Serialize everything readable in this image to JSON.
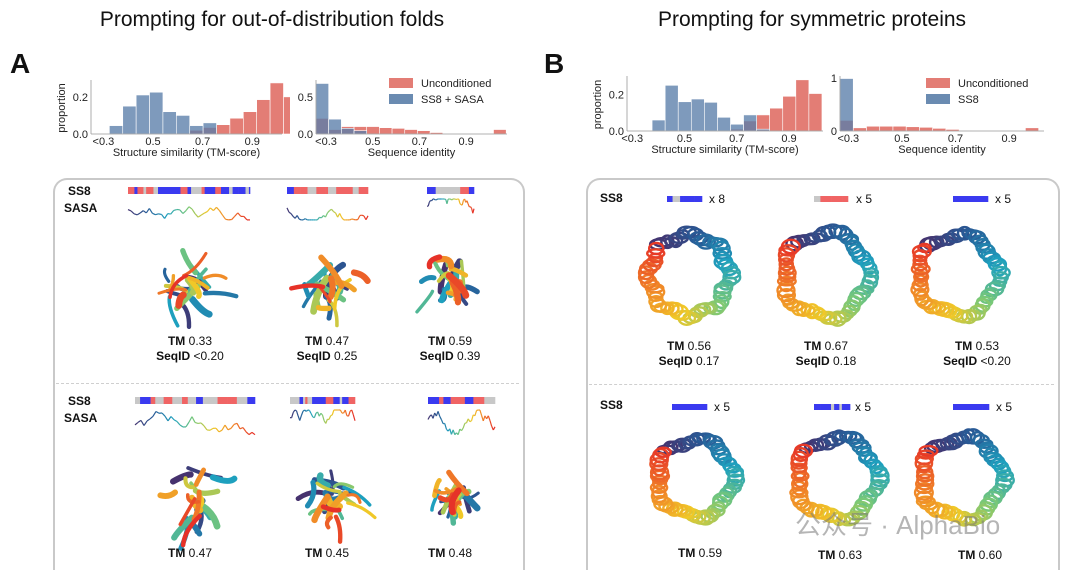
{
  "panel_a": {
    "letter": "A",
    "title": "Prompting for out-of-distribution folds",
    "row_labels": {
      "ss8": "SS8",
      "sasa": "SASA"
    },
    "row1": [
      {
        "tm_label": "TM",
        "tm": "0.33",
        "seqid_label": "SeqID",
        "seqid": "<0.20"
      },
      {
        "tm_label": "TM",
        "tm": "0.47",
        "seqid_label": "SeqID",
        "seqid": "0.25"
      },
      {
        "tm_label": "TM",
        "tm": "0.59",
        "seqid_label": "SeqID",
        "seqid": "0.39"
      }
    ],
    "row2": [
      {
        "tm_label": "TM",
        "tm": "0.47"
      },
      {
        "tm_label": "TM",
        "tm": "0.45"
      },
      {
        "tm_label": "TM",
        "tm": "0.48"
      }
    ]
  },
  "panel_b": {
    "letter": "B",
    "title": "Prompting for symmetric proteins",
    "row_labels": {
      "ss8": "SS8"
    },
    "row1": [
      {
        "repeat": "x 8",
        "tm_label": "TM",
        "tm": "0.56",
        "seqid_label": "SeqID",
        "seqid": "0.17"
      },
      {
        "repeat": "x 5",
        "tm_label": "TM",
        "tm": "0.67",
        "seqid_label": "SeqID",
        "seqid": "0.18"
      },
      {
        "repeat": "x 5",
        "tm_label": "TM",
        "tm": "0.53",
        "seqid_label": "SeqID",
        "seqid": "<0.20"
      }
    ],
    "row2": [
      {
        "repeat": "x 5",
        "tm_label": "TM",
        "tm": "0.59"
      },
      {
        "repeat": "x 5",
        "tm_label": "TM",
        "tm": "0.63"
      },
      {
        "repeat": "x 5",
        "tm_label": "TM",
        "tm": "0.60"
      }
    ]
  },
  "colors": {
    "unconditioned": "#e06f66",
    "conditioned": "#5a7ea9",
    "helix": "#3a3af0",
    "strand": "#f06464",
    "coil": "#c8c8c8"
  },
  "watermark": "公众号 · AlphaBio",
  "chart_data": [
    {
      "type": "bar",
      "panel": "A",
      "xlabel": "Structure similarity (TM-score)",
      "ylabel": "proportion",
      "xticks": [
        "<0.3",
        "0.5",
        "0.7",
        "0.9"
      ],
      "yticks": [
        "0.0",
        "0.2"
      ],
      "xlim": [
        0.25,
        1.02
      ],
      "ylim": [
        0,
        0.28
      ],
      "bin_start": 0.324,
      "bin_width": 0.054,
      "series": [
        {
          "name": "Unconditioned",
          "values": [
            0,
            0,
            0,
            0,
            0,
            0.005,
            0.02,
            0.035,
            0.05,
            0.085,
            0.12,
            0.185,
            0.275,
            0.2
          ]
        },
        {
          "name": "SS8 + SASA",
          "values": [
            0.045,
            0.15,
            0.21,
            0.225,
            0.12,
            0.1,
            0.045,
            0.06,
            0,
            0,
            0,
            0,
            0,
            0
          ]
        }
      ]
    },
    {
      "type": "bar",
      "panel": "A",
      "xlabel": "Sequence identity",
      "ylabel": "",
      "xticks": [
        "<0.3",
        "0.5",
        "0.7",
        "0.9"
      ],
      "yticks": [
        "0.0",
        "0.5"
      ],
      "xlim": [
        0.257,
        1.075
      ],
      "ylim": [
        0,
        0.7
      ],
      "bin_start": 0.257,
      "bin_width": 0.0543,
      "legend": "top-right",
      "series": [
        {
          "name": "Unconditioned",
          "values": [
            0.21,
            0.06,
            0.1,
            0.1,
            0.1,
            0.085,
            0.076,
            0.06,
            0.045,
            0.02,
            0,
            0,
            0,
            0,
            0.06
          ]
        },
        {
          "name": "SS8 + SASA",
          "values": [
            0.68,
            0.2,
            0.076,
            0.045,
            0,
            0,
            0,
            0,
            0,
            0,
            0,
            0,
            0,
            0,
            0
          ]
        }
      ]
    },
    {
      "type": "bar",
      "panel": "B",
      "xlabel": "Structure similarity (TM-score)",
      "ylabel": "proportion",
      "xticks": [
        "<0.3",
        "0.5",
        "0.7",
        "0.9"
      ],
      "yticks": [
        "0.0",
        "0.2"
      ],
      "xlim": [
        0.28,
        1.03
      ],
      "ylim": [
        0,
        0.29
      ],
      "bin_start": 0.376,
      "bin_width": 0.05,
      "series": [
        {
          "name": "Unconditioned",
          "values": [
            0,
            0,
            0,
            0,
            0,
            0,
            0.01,
            0.055,
            0.088,
            0.125,
            0.19,
            0.28,
            0.205
          ]
        },
        {
          "name": "SS8",
          "values": [
            0.06,
            0.25,
            0.16,
            0.175,
            0.157,
            0.075,
            0.037,
            0.088,
            0.01,
            0,
            0,
            0,
            0
          ]
        }
      ]
    },
    {
      "type": "bar",
      "panel": "B",
      "xlabel": "Sequence identity",
      "ylabel": "",
      "xticks": [
        "<0.3",
        "0.5",
        "0.7",
        "0.9"
      ],
      "yticks": [
        "0",
        "1"
      ],
      "xlim": [
        0.269,
        1.03
      ],
      "ylim": [
        0,
        1.0
      ],
      "bin_start": 0.269,
      "bin_width": 0.0494,
      "legend": "top-right",
      "series": [
        {
          "name": "Unconditioned",
          "values": [
            0.2,
            0.06,
            0.09,
            0.09,
            0.09,
            0.08,
            0.07,
            0.05,
            0.03,
            0.01,
            0,
            0,
            0,
            0,
            0.06
          ]
        },
        {
          "name": "SS8",
          "values": [
            0.99,
            0,
            0,
            0,
            0,
            0,
            0,
            0,
            0,
            0,
            0,
            0,
            0,
            0,
            0
          ]
        }
      ]
    }
  ]
}
